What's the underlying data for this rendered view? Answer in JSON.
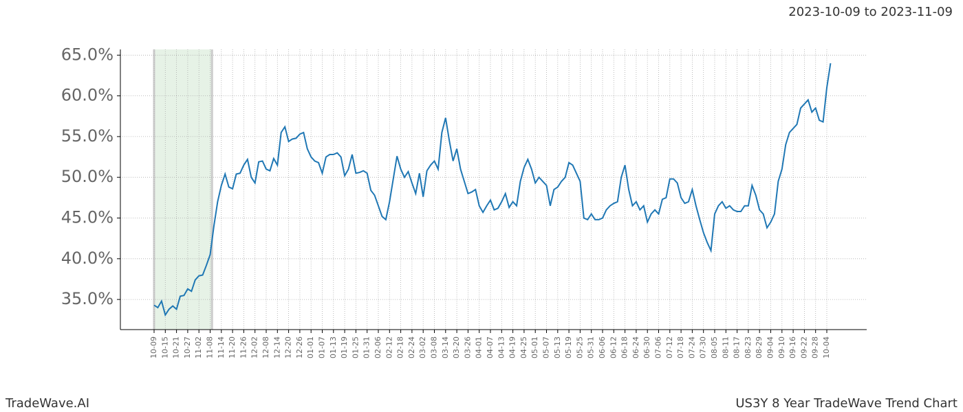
{
  "chart_data": {
    "type": "line",
    "subtitle": "2023-10-09 to 2023-11-09",
    "footer_left": "TradeWave.AI",
    "footer_right": "US3Y 8 Year TradeWave Trend Chart",
    "categories": [
      "10-09",
      null,
      null,
      "10-15",
      null,
      null,
      "10-21",
      null,
      null,
      "10-27",
      null,
      null,
      "11-02",
      null,
      null,
      "11-08",
      null,
      null,
      "11-14",
      null,
      null,
      "11-20",
      null,
      null,
      "11-26",
      null,
      null,
      "12-02",
      null,
      null,
      "12-08",
      null,
      null,
      "12-14",
      null,
      null,
      "12-20",
      null,
      null,
      "12-26",
      null,
      null,
      "01-01",
      null,
      null,
      "01-07",
      null,
      null,
      "01-13",
      null,
      null,
      "01-19",
      null,
      null,
      "01-25",
      null,
      null,
      "01-31",
      null,
      null,
      "02-06",
      null,
      null,
      "02-12",
      null,
      null,
      "02-18",
      null,
      null,
      "02-24",
      null,
      null,
      "03-02",
      null,
      null,
      "03-08",
      null,
      null,
      "03-14",
      null,
      null,
      "03-20",
      null,
      null,
      "03-26",
      null,
      null,
      "04-01",
      null,
      null,
      "04-07",
      null,
      null,
      "04-13",
      null,
      null,
      "04-19",
      null,
      null,
      "04-25",
      null,
      null,
      "05-01",
      null,
      null,
      "05-07",
      null,
      null,
      "05-13",
      null,
      null,
      "05-19",
      null,
      null,
      "05-25",
      null,
      null,
      "05-31",
      null,
      null,
      "06-06",
      null,
      null,
      "06-12",
      null,
      null,
      "06-18",
      null,
      null,
      "06-24",
      null,
      null,
      "06-30",
      null,
      null,
      "07-06",
      null,
      null,
      "07-12",
      null,
      null,
      "07-18",
      null,
      null,
      "07-24",
      null,
      null,
      "07-30",
      null,
      null,
      "08-05",
      null,
      null,
      "08-11",
      null,
      null,
      "08-17",
      null,
      null,
      "08-23",
      null,
      null,
      "08-29",
      null,
      null,
      "09-04",
      null,
      null,
      "09-10",
      null,
      null,
      "09-16",
      null,
      null,
      "09-22",
      null,
      null,
      "09-28",
      null,
      null,
      "10-04",
      null
    ],
    "series": [
      {
        "name": "US3Y",
        "color": "#1f77b4",
        "values": [
          34.3,
          34.0,
          34.8,
          33.1,
          33.8,
          34.2,
          33.8,
          35.4,
          35.5,
          36.3,
          36.0,
          37.4,
          37.9,
          38.0,
          39.2,
          40.5,
          44.0,
          47.0,
          49.0,
          50.4,
          48.8,
          48.6,
          50.4,
          50.5,
          51.5,
          52.2,
          50.0,
          49.3,
          51.9,
          52.0,
          51.0,
          50.8,
          52.3,
          51.5,
          55.5,
          56.2,
          54.4,
          54.7,
          54.8,
          55.3,
          55.5,
          53.5,
          52.5,
          52.0,
          51.8,
          50.5,
          52.5,
          52.8,
          52.8,
          53.0,
          52.5,
          50.2,
          51.0,
          52.8,
          50.5,
          50.6,
          50.8,
          50.5,
          48.4,
          47.8,
          46.5,
          45.2,
          44.8,
          47.0,
          49.8,
          52.6,
          51.0,
          50.0,
          50.7,
          49.3,
          48.0,
          50.5,
          47.6,
          50.8,
          51.5,
          52.0,
          51.0,
          55.5,
          57.3,
          54.5,
          52.0,
          53.5,
          51.0,
          49.5,
          48.0,
          48.2,
          48.5,
          46.5,
          45.7,
          46.5,
          47.2,
          46.0,
          46.2,
          47.0,
          48.0,
          46.3,
          47.0,
          46.5,
          49.5,
          51.2,
          52.2,
          51.0,
          49.3,
          50.0,
          49.5,
          49.0,
          46.5,
          48.5,
          48.8,
          49.5,
          50.0,
          51.8,
          51.5,
          50.5,
          49.5,
          45.0,
          44.8,
          45.5,
          44.8,
          44.8,
          45.0,
          46.0,
          46.5,
          46.8,
          47.0,
          50.0,
          51.5,
          48.5,
          46.5,
          47.0,
          46.0,
          46.5,
          44.5,
          45.5,
          46.0,
          45.5,
          47.3,
          47.5,
          49.8,
          49.8,
          49.3,
          47.5,
          46.8,
          47.0,
          48.5,
          46.5,
          44.8,
          43.2,
          42.0,
          41.0,
          45.5,
          46.5,
          47.0,
          46.2,
          46.5,
          46.0,
          45.8,
          45.8,
          46.5,
          46.5,
          49.0,
          47.8,
          46.0,
          45.5,
          43.8,
          44.5,
          45.5,
          49.5,
          51.0,
          54.0,
          55.5,
          56.0,
          56.5,
          58.5,
          59.0,
          59.5,
          58.0,
          58.5,
          57.0,
          56.8,
          61.0,
          64.0
        ]
      }
    ],
    "shaded_span": [
      0,
      15.5
    ],
    "shade_color": "#e6f2e6",
    "ylim": [
      31.3,
      65.7
    ],
    "yticks": [
      {
        "value": 35,
        "label": "35.0%"
      },
      {
        "value": 40,
        "label": "40.0%"
      },
      {
        "value": 45,
        "label": "45.0%"
      },
      {
        "value": 50,
        "label": "50.0%"
      },
      {
        "value": 55,
        "label": "55.0%"
      },
      {
        "value": 60,
        "label": "60.0%"
      },
      {
        "value": 65,
        "label": "65.0%"
      }
    ],
    "grid": true
  }
}
